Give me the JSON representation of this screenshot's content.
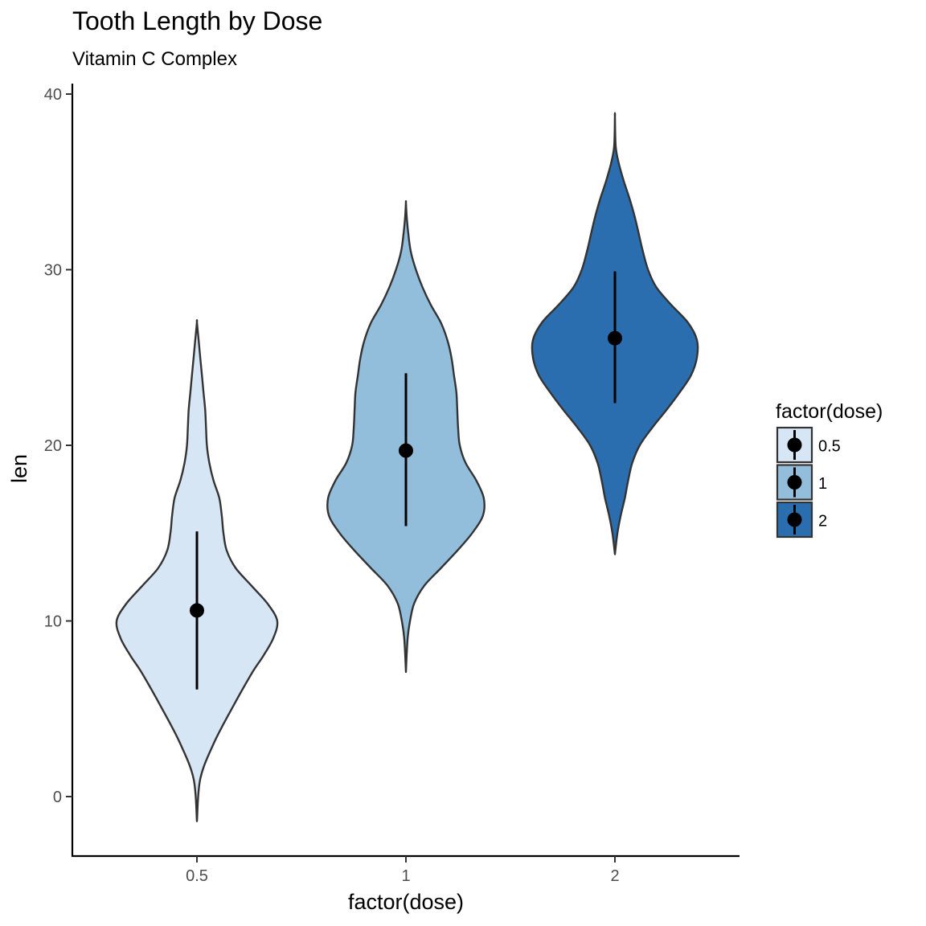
{
  "chart_data": {
    "type": "violin",
    "title": "Tooth Length by Dose",
    "subtitle": "Vitamin C Complex",
    "xlabel": "factor(dose)",
    "ylabel": "len",
    "ylim": [
      -3.3,
      43
    ],
    "yticks": [
      0,
      10,
      20,
      30,
      40
    ],
    "categories": [
      "0.5",
      "1",
      "2"
    ],
    "colors": [
      "#d7e6f4",
      "#92bedb",
      "#2a6eb0"
    ],
    "outline_color": "#333333",
    "grid": false,
    "legend": {
      "title": "factor(dose)",
      "position": "right",
      "entries": [
        "0.5",
        "1",
        "2"
      ]
    },
    "summary": [
      {
        "dose": "0.5",
        "mean": 10.6,
        "lower": 6.1,
        "upper": 15.1
      },
      {
        "dose": "1",
        "mean": 19.7,
        "lower": 15.4,
        "upper": 24.1
      },
      {
        "dose": "2",
        "mean": 26.1,
        "lower": 22.4,
        "upper": 29.9
      }
    ],
    "violins": [
      {
        "dose": "0.5",
        "profile": [
          [
            -1.4,
            0.0
          ],
          [
            1.0,
            0.04
          ],
          [
            3.0,
            0.2
          ],
          [
            5.0,
            0.42
          ],
          [
            7.0,
            0.66
          ],
          [
            8.0,
            0.8
          ],
          [
            9.0,
            0.92
          ],
          [
            10.0,
            0.97
          ],
          [
            11.0,
            0.85
          ],
          [
            12.0,
            0.66
          ],
          [
            13.0,
            0.47
          ],
          [
            14.0,
            0.36
          ],
          [
            15.0,
            0.32
          ],
          [
            16.0,
            0.3
          ],
          [
            17.0,
            0.27
          ],
          [
            18.0,
            0.2
          ],
          [
            19.0,
            0.15
          ],
          [
            20.0,
            0.12
          ],
          [
            21.0,
            0.11
          ],
          [
            22.0,
            0.1
          ],
          [
            23.0,
            0.08
          ],
          [
            24.0,
            0.06
          ],
          [
            25.0,
            0.04
          ],
          [
            26.0,
            0.02
          ],
          [
            27.0,
            0.0
          ]
        ]
      },
      {
        "dose": "1",
        "profile": [
          [
            7.1,
            0.0
          ],
          [
            9.0,
            0.02
          ],
          [
            10.0,
            0.05
          ],
          [
            11.0,
            0.1
          ],
          [
            12.0,
            0.22
          ],
          [
            13.0,
            0.42
          ],
          [
            14.0,
            0.62
          ],
          [
            15.0,
            0.8
          ],
          [
            16.0,
            0.93
          ],
          [
            17.0,
            0.94
          ],
          [
            18.0,
            0.85
          ],
          [
            19.0,
            0.72
          ],
          [
            20.0,
            0.65
          ],
          [
            21.0,
            0.63
          ],
          [
            22.0,
            0.62
          ],
          [
            23.0,
            0.61
          ],
          [
            24.0,
            0.58
          ],
          [
            25.0,
            0.55
          ],
          [
            26.0,
            0.5
          ],
          [
            27.0,
            0.42
          ],
          [
            28.0,
            0.3
          ],
          [
            29.0,
            0.2
          ],
          [
            30.0,
            0.12
          ],
          [
            31.0,
            0.06
          ],
          [
            32.0,
            0.03
          ],
          [
            33.0,
            0.01
          ],
          [
            33.8,
            0.0
          ]
        ]
      },
      {
        "dose": "2",
        "profile": [
          [
            13.8,
            0.0
          ],
          [
            15.0,
            0.03
          ],
          [
            16.0,
            0.07
          ],
          [
            17.0,
            0.12
          ],
          [
            18.0,
            0.16
          ],
          [
            19.0,
            0.21
          ],
          [
            20.0,
            0.3
          ],
          [
            21.0,
            0.45
          ],
          [
            22.0,
            0.62
          ],
          [
            23.0,
            0.78
          ],
          [
            24.0,
            0.92
          ],
          [
            25.0,
            0.99
          ],
          [
            26.0,
            0.99
          ],
          [
            27.0,
            0.88
          ],
          [
            28.0,
            0.68
          ],
          [
            29.0,
            0.5
          ],
          [
            30.0,
            0.4
          ],
          [
            31.0,
            0.34
          ],
          [
            32.0,
            0.29
          ],
          [
            33.0,
            0.24
          ],
          [
            34.0,
            0.18
          ],
          [
            35.0,
            0.11
          ],
          [
            36.0,
            0.05
          ],
          [
            37.0,
            0.01
          ],
          [
            38.7,
            0.0
          ]
        ]
      }
    ]
  }
}
